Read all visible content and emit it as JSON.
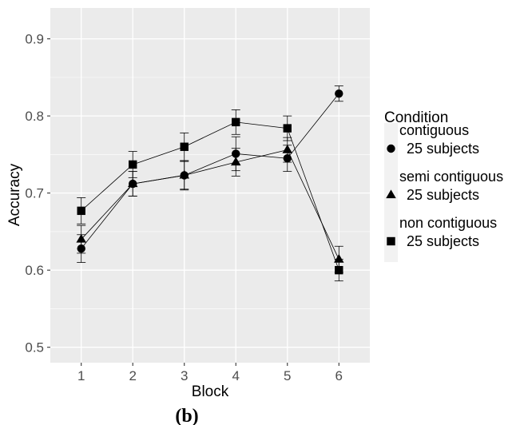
{
  "chart_data": {
    "type": "line",
    "xlabel": "Block",
    "ylabel": "Accuracy",
    "x": [
      1,
      2,
      3,
      4,
      5,
      6
    ],
    "xlim": [
      0.4,
      6.6
    ],
    "ylim": [
      0.48,
      0.94
    ],
    "yticks": [
      0.5,
      0.6,
      0.7,
      0.8,
      0.9
    ],
    "ytick_labels": [
      "0.5",
      "0.6",
      "0.7",
      "0.8",
      "0.9"
    ],
    "xtick_labels": [
      "1",
      "2",
      "3",
      "4",
      "5",
      "6"
    ],
    "grid": true,
    "legend": {
      "title": "Condition",
      "placement": "right"
    },
    "series": [
      {
        "name": "contiguous",
        "sub": "25 subjects",
        "marker": "circle",
        "values": [
          0.628,
          0.712,
          0.723,
          0.751,
          0.745,
          0.829
        ],
        "err": [
          0.018,
          0.016,
          0.019,
          0.022,
          0.017,
          0.01
        ]
      },
      {
        "name": "semi contiguous",
        "sub": "25 subjects",
        "marker": "triangle",
        "values": [
          0.64,
          0.712,
          0.723,
          0.74,
          0.756,
          0.614
        ],
        "err": [
          0.018,
          0.016,
          0.018,
          0.018,
          0.016,
          0.017
        ]
      },
      {
        "name": "non contiguous",
        "sub": "25 subjects",
        "marker": "square",
        "values": [
          0.677,
          0.737,
          0.76,
          0.792,
          0.784,
          0.6
        ],
        "err": [
          0.017,
          0.017,
          0.018,
          0.016,
          0.016,
          0.014
        ]
      }
    ],
    "caption": "(b)"
  },
  "colors": {
    "panel": "#ebebeb",
    "grid": "#ffffff",
    "ink": "#000000",
    "tick": "#4d4d4d",
    "legend_key": "#f2f2f2"
  }
}
